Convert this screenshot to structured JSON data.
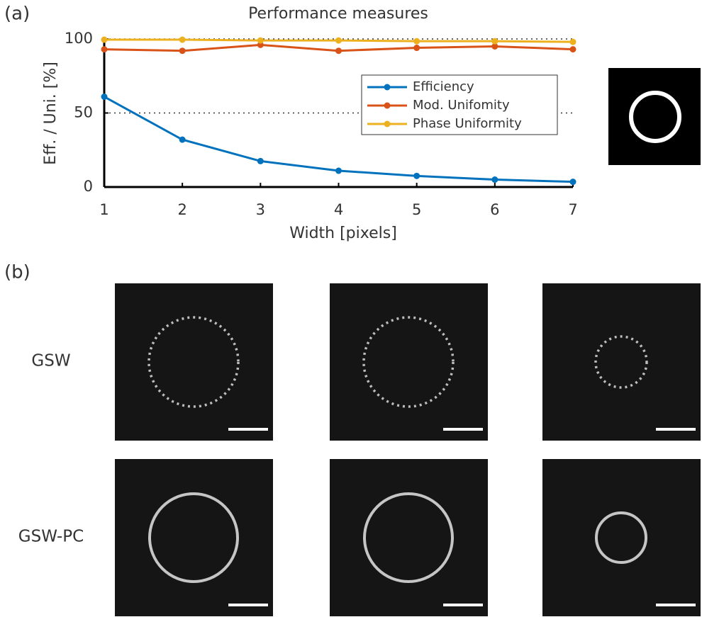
{
  "panel_labels": [
    "(a)",
    "(b)"
  ],
  "row_labels": [
    "GSW",
    "GSW-PC"
  ],
  "chart_data": {
    "type": "line",
    "title": "Performance measures",
    "x_label": "Width [pixels]",
    "y_label": "Eff. / Uni. [%]",
    "x": [
      1,
      2,
      3,
      4,
      5,
      6,
      7
    ],
    "series": [
      {
        "name": "Efficiency",
        "color": "#0072bd",
        "values": [
          61,
          32,
          17.5,
          11,
          7.5,
          5,
          3.5
        ]
      },
      {
        "name": "Mod. Unifomity",
        "color": "#d95319",
        "values": [
          93,
          92,
          96,
          92,
          94,
          95,
          93
        ]
      },
      {
        "name": "Phase Uniformity",
        "color": "#edb120",
        "values": [
          99.5,
          99.5,
          99,
          99,
          98.5,
          98.5,
          98
        ]
      }
    ],
    "xlim": [
      1,
      7
    ],
    "ylim": [
      0,
      100
    ],
    "xticks": [
      1,
      2,
      3,
      4,
      5,
      6,
      7
    ],
    "yticks": [
      0,
      50,
      100
    ],
    "grid": true
  }
}
